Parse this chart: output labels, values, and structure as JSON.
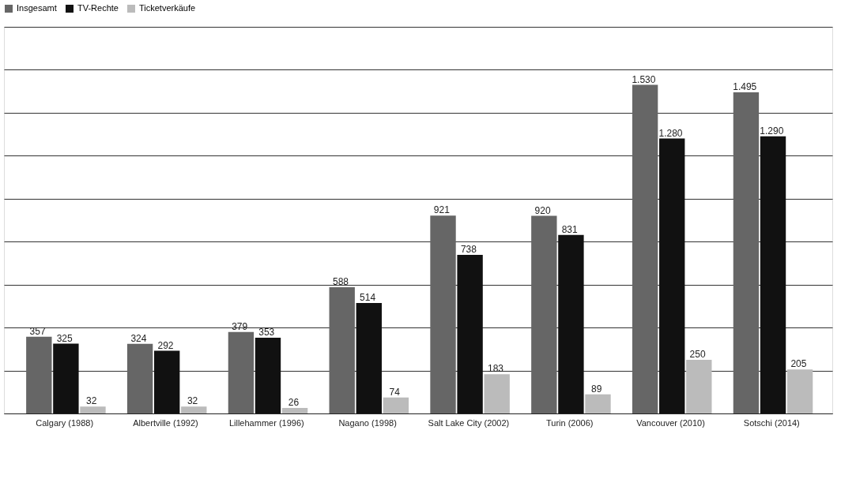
{
  "chart_data": {
    "type": "bar",
    "categories": [
      "Calgary (1988)",
      "Albertville (1992)",
      "Lillehammer (1996)",
      "Nagano (1998)",
      "Salt Lake City (2002)",
      "Turin (2006)",
      "Vancouver (2010)",
      "Sotschi (2014)"
    ],
    "series": [
      {
        "name": "Insgesamt",
        "color": "#666666",
        "values": [
          357,
          324,
          379,
          588,
          921,
          920,
          1530,
          1495
        ],
        "value_labels": [
          "357",
          "324",
          "379",
          "588",
          "921",
          "920",
          "1.530",
          "1.495"
        ]
      },
      {
        "name": "TV-Rechte",
        "color": "#111111",
        "values": [
          325,
          292,
          353,
          514,
          738,
          831,
          1280,
          1290
        ],
        "value_labels": [
          "325",
          "292",
          "353",
          "514",
          "738",
          "831",
          "1.280",
          "1.290"
        ]
      },
      {
        "name": "Ticketverkäufe",
        "color": "#bbbbbb",
        "values": [
          32,
          32,
          26,
          74,
          183,
          89,
          250,
          205
        ],
        "value_labels": [
          "32",
          "32",
          "26",
          "74",
          "183",
          "89",
          "250",
          "205"
        ]
      }
    ],
    "ylim": [
      0,
      1800
    ],
    "yticks": [
      {
        "value": 0,
        "label": null
      },
      {
        "value": 200,
        "label": null
      },
      {
        "value": 400,
        "label": null
      },
      {
        "value": 600,
        "label": null
      },
      {
        "value": 800,
        "label": null
      },
      {
        "value": 1000,
        "label": null
      },
      {
        "value": 1200,
        "label": null
      },
      {
        "value": 1400,
        "label": null
      },
      {
        "value": 1600,
        "label": null
      },
      {
        "value": 1800,
        "label": null
      }
    ],
    "tick_labels": "x",
    "grid": "y",
    "legend": "top"
  }
}
